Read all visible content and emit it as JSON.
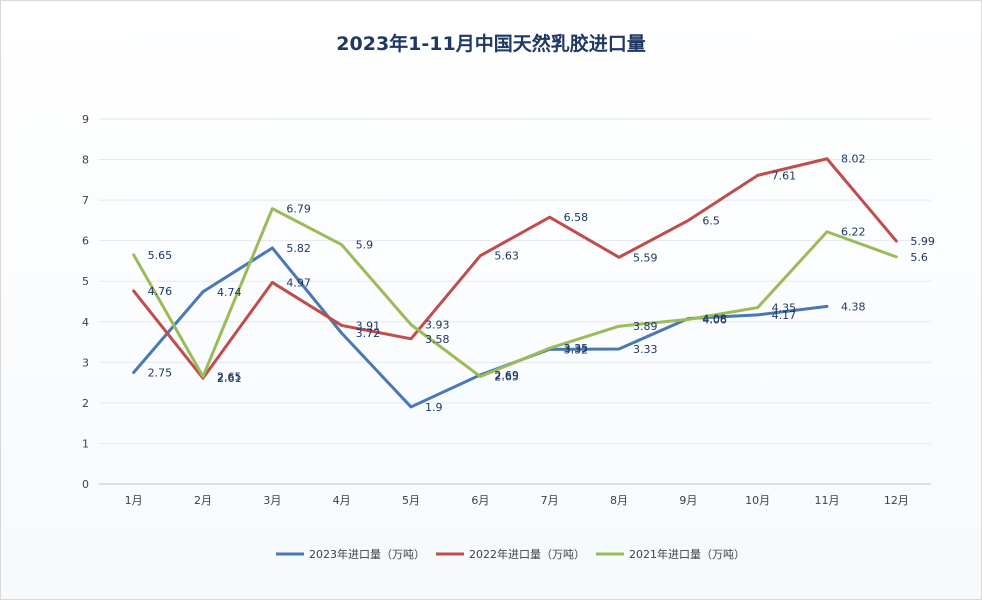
{
  "chart_data": {
    "type": "line",
    "title": "2023年1-11月中国天然乳胶进口量",
    "xlabel": "",
    "ylabel": "",
    "categories": [
      "1月",
      "2月",
      "3月",
      "4月",
      "5月",
      "6月",
      "7月",
      "8月",
      "9月",
      "10月",
      "11月",
      "12月"
    ],
    "y_ticks": [
      "0",
      "1",
      "2",
      "3",
      "4",
      "5",
      "6",
      "7",
      "8",
      "9"
    ],
    "ylim": [
      0,
      9
    ],
    "grid": true,
    "legend_position": "bottom",
    "series": [
      {
        "name": "2023年进口量（万吨）",
        "color": "#4a78b5",
        "values": [
          2.75,
          4.74,
          5.82,
          3.72,
          1.9,
          2.69,
          3.32,
          3.33,
          4.08,
          4.17,
          4.38,
          null
        ],
        "labels": [
          "2.75",
          "4.74",
          "5.82",
          "3.72",
          "1.9",
          "2.69",
          "3.32",
          "3.33",
          "4.08",
          "4.17",
          "4.38",
          ""
        ]
      },
      {
        "name": "2022年进口量（万吨）",
        "color": "#bf4d4b",
        "values": [
          4.76,
          2.61,
          4.97,
          3.91,
          3.58,
          5.63,
          6.58,
          5.59,
          6.5,
          7.61,
          8.02,
          5.99
        ],
        "labels": [
          "4.76",
          "2.61",
          "4.97",
          "3.91",
          "3.58",
          "5.63",
          "6.58",
          "5.59",
          "6.5",
          "7.61",
          "8.02",
          "5.99"
        ]
      },
      {
        "name": "2021年进口量（万吨）",
        "color": "#9bbb59",
        "values": [
          5.65,
          2.65,
          6.79,
          5.9,
          3.93,
          2.65,
          3.35,
          3.89,
          4.06,
          4.35,
          6.22,
          5.6
        ],
        "labels": [
          "5.65",
          "2.65",
          "6.79",
          "5.9",
          "3.93",
          "2.65",
          "3.35",
          "3.89",
          "4.06",
          "4.35",
          "6.22",
          "5.6"
        ]
      }
    ]
  }
}
